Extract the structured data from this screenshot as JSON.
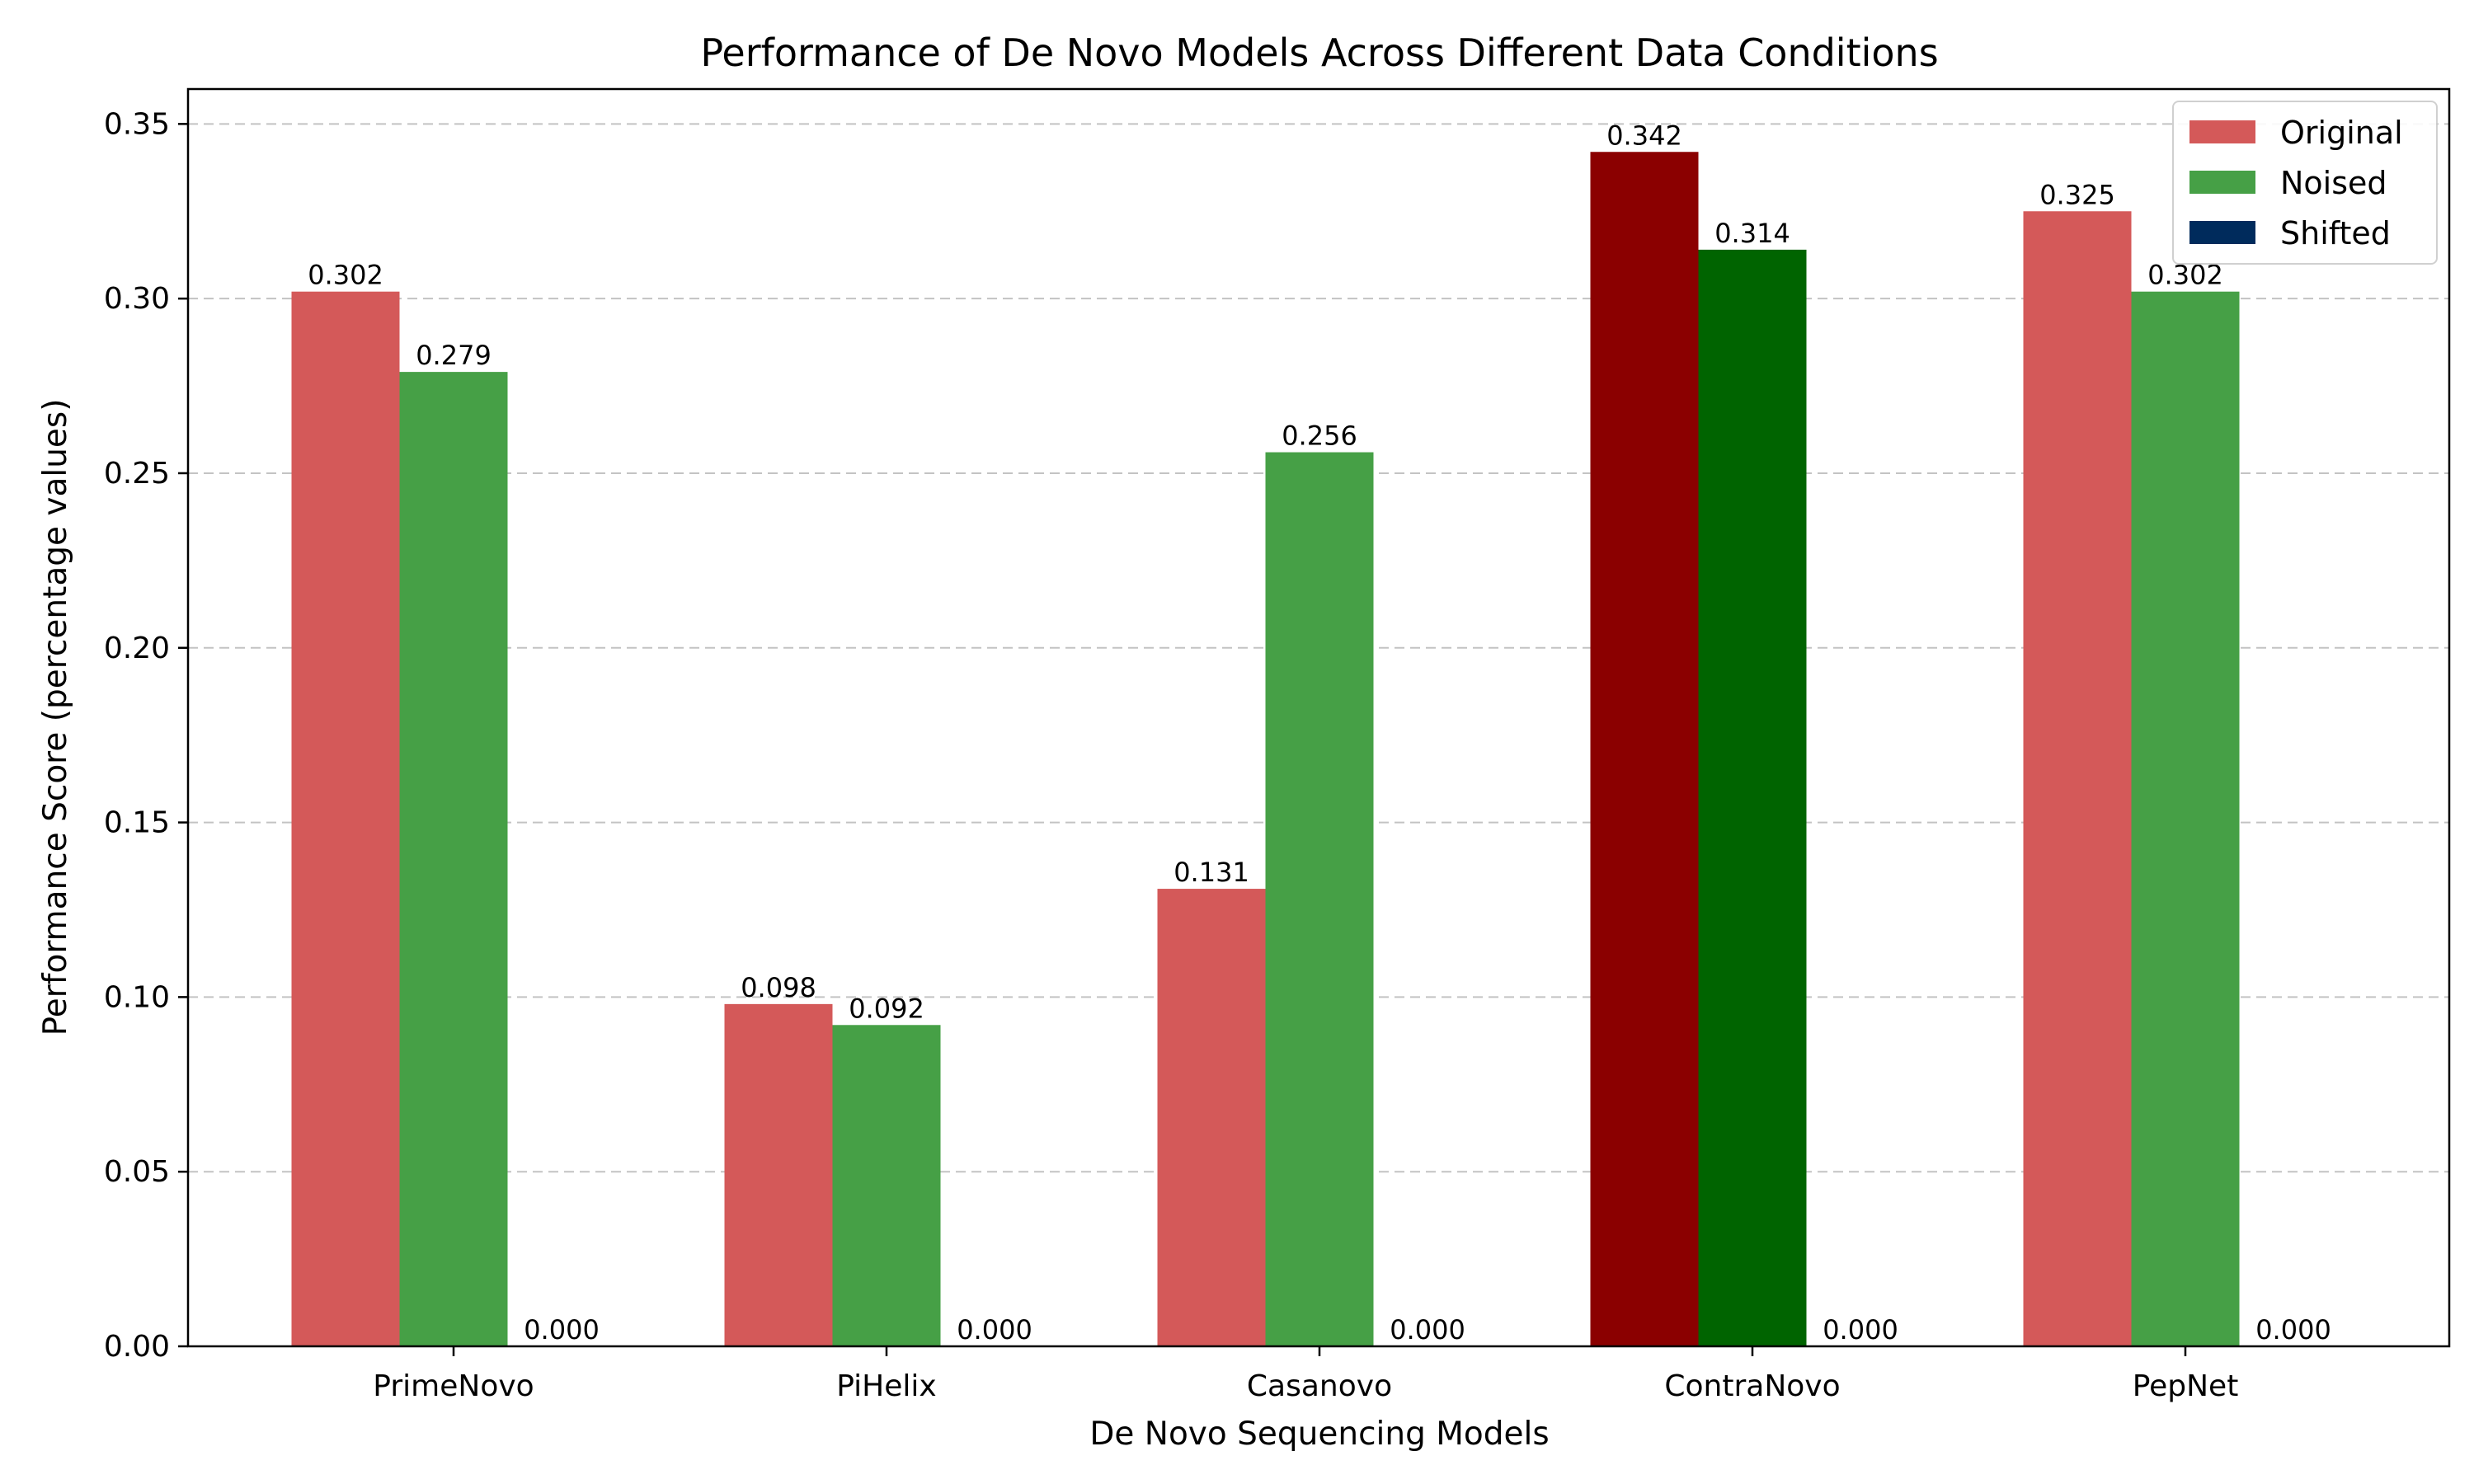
{
  "chart_data": {
    "type": "bar",
    "title": "Performance of De Novo Models Across Different Data Conditions",
    "xlabel": "De Novo Sequencing Models",
    "ylabel": "Performance Score (percentage values)",
    "categories": [
      "PrimeNovo",
      "PiHelix",
      "Casanovo",
      "ContraNovo",
      "PepNet"
    ],
    "ylim": [
      0,
      0.36
    ],
    "yticks": [
      0.0,
      0.05,
      0.1,
      0.15,
      0.2,
      0.25,
      0.3,
      0.35
    ],
    "ytick_labels": [
      "0.00",
      "0.05",
      "0.10",
      "0.15",
      "0.20",
      "0.25",
      "0.30",
      "0.35"
    ],
    "grid": "y-dashed",
    "legend_position": "top-right",
    "highlighted_category": "ContraNovo",
    "series": [
      {
        "name": "Original",
        "color": "#d45959",
        "highlight_color": "#8b0000",
        "values": [
          0.302,
          0.098,
          0.131,
          0.342,
          0.325
        ],
        "labels": [
          "0.302",
          "0.098",
          "0.131",
          "0.342",
          "0.325"
        ]
      },
      {
        "name": "Noised",
        "color": "#46a046",
        "highlight_color": "#006400",
        "values": [
          0.279,
          0.092,
          0.256,
          0.314,
          0.302
        ],
        "labels": [
          "0.279",
          "0.092",
          "0.256",
          "0.314",
          "0.302"
        ]
      },
      {
        "name": "Shifted",
        "color": "#002b5c",
        "highlight_color": "#002b5c",
        "values": [
          0.0,
          0.0,
          0.0,
          0.0,
          0.0
        ],
        "labels": [
          "0.000",
          "0.000",
          "0.000",
          "0.000",
          ""
        ]
      }
    ],
    "extra_labels": [
      {
        "category_index": 4,
        "series_index": 2,
        "text": "0.000"
      }
    ]
  }
}
